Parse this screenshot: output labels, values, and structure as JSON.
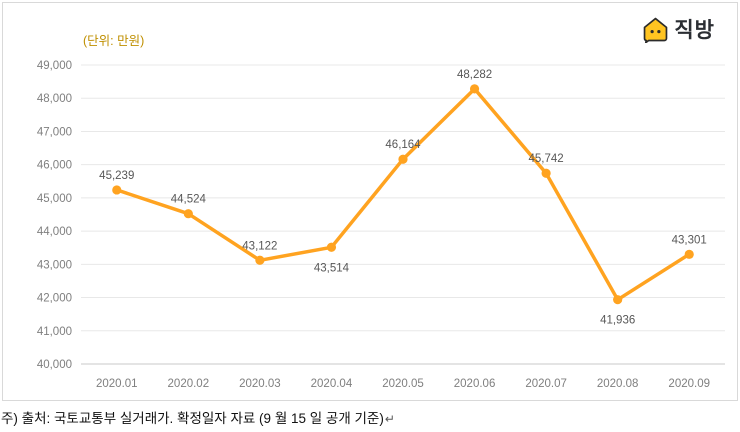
{
  "header": {
    "unit_label": "(단위: 만원)",
    "unit_label_color": "#bf8f00",
    "logo_text": "직방",
    "logo_color": "#ffc421"
  },
  "chart_data": {
    "type": "line",
    "title": "",
    "xlabel": "",
    "ylabel": "",
    "unit_note": "(단위: 만원)",
    "categories": [
      "2020.01",
      "2020.02",
      "2020.03",
      "2020.04",
      "2020.05",
      "2020.06",
      "2020.07",
      "2020.08",
      "2020.09"
    ],
    "values": [
      45239,
      44524,
      43122,
      43514,
      46164,
      48282,
      45742,
      41936,
      43301
    ],
    "data_label_side": [
      "above",
      "above",
      "above",
      "below",
      "above",
      "above",
      "above",
      "below",
      "above"
    ],
    "ylim": [
      40000,
      49000
    ],
    "ytick_step": 1000,
    "line_color": "#ffa320",
    "marker_color": "#ffa320",
    "grid": true,
    "legend": "none"
  },
  "footer": {
    "note": "주) 출처: 국토교통부 실거래가. 확정일자 자료 (9 월 15 일 공개 기준)",
    "return_mark": "↵"
  }
}
